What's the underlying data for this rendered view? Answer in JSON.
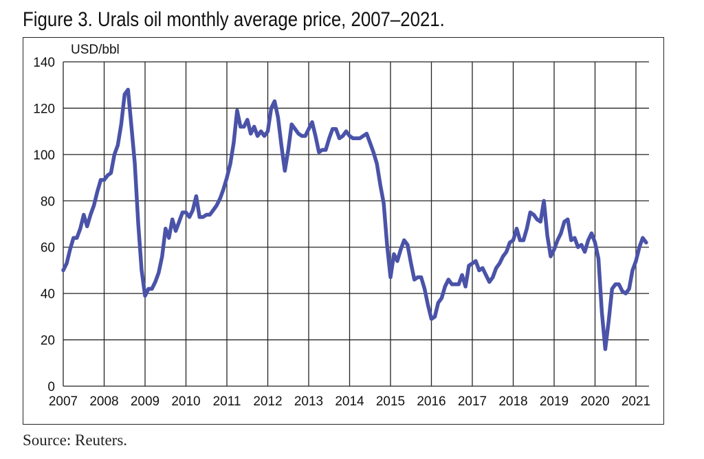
{
  "title": "Figure 3. Urals oil monthly average price, 2007–2021.",
  "source": "Source: Reuters.",
  "chart_data": {
    "type": "line",
    "title": "Figure 3. Urals oil monthly average price, 2007–2021.",
    "ylabel": "USD/bbl",
    "xlabel": "",
    "ylim": [
      0,
      140
    ],
    "xlim": [
      2007,
      2021.33
    ],
    "yticks": [
      0,
      20,
      40,
      60,
      80,
      100,
      120,
      140
    ],
    "xticks": [
      "2007",
      "2008",
      "2009",
      "2010",
      "2011",
      "2012",
      "2013",
      "2014",
      "2015",
      "2016",
      "2017",
      "2018",
      "2019",
      "2020",
      "2021"
    ],
    "grid": true,
    "line_color": "#4a53a8",
    "series": [
      {
        "name": "Urals",
        "start": "2007-01",
        "frequency": "monthly",
        "values": [
          50,
          53,
          59,
          64,
          64,
          68,
          74,
          69,
          74,
          78,
          84,
          89,
          89,
          91,
          92,
          100,
          104,
          113,
          126,
          128,
          112,
          96,
          70,
          50,
          39,
          42,
          42,
          45,
          49,
          56,
          68,
          64,
          72,
          67,
          71,
          75,
          75,
          73,
          76,
          82,
          73,
          73,
          74,
          74,
          76,
          78,
          81,
          85,
          90,
          96,
          105,
          119,
          112,
          112,
          115,
          109,
          112,
          108,
          110,
          108,
          110,
          120,
          123,
          116,
          104,
          93,
          102,
          113,
          111,
          109,
          108,
          108,
          111,
          114,
          108,
          101,
          102,
          102,
          107,
          111,
          111,
          107,
          108,
          110,
          108,
          107,
          107,
          107,
          108,
          109,
          105,
          101,
          96,
          87,
          79,
          61,
          47,
          57,
          54,
          59,
          63,
          61,
          53,
          46,
          47,
          47,
          42,
          35,
          29,
          30,
          36,
          38,
          43,
          46,
          44,
          44,
          44,
          48,
          43,
          52,
          53,
          54,
          50,
          51,
          48,
          45,
          47,
          51,
          53,
          56,
          58,
          62,
          63,
          68,
          63,
          63,
          68,
          75,
          74,
          72,
          71,
          80,
          65,
          56,
          59,
          63,
          66,
          71,
          72,
          63,
          64,
          60,
          61,
          58,
          63,
          66,
          62,
          55,
          32,
          16,
          28,
          42,
          44,
          44,
          41,
          40,
          42,
          50,
          54,
          60,
          64,
          62
        ]
      }
    ]
  }
}
